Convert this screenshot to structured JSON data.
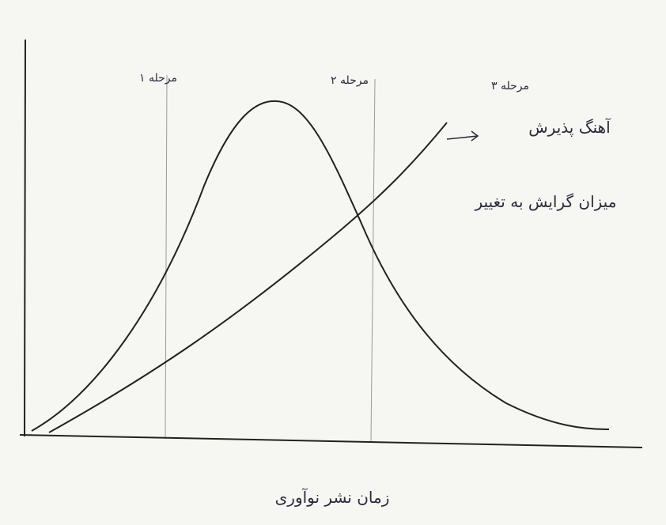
{
  "stages": [
    {
      "label": "مرحله ۱"
    },
    {
      "label": "مرحله ۲"
    },
    {
      "label": "مرحله ۳"
    }
  ],
  "curves": [
    {
      "label": "آهنگ پذیرش"
    },
    {
      "label": "میزان گرایش به تغییر"
    }
  ],
  "x_axis": {
    "label": "زمان نشر نوآوری"
  }
}
